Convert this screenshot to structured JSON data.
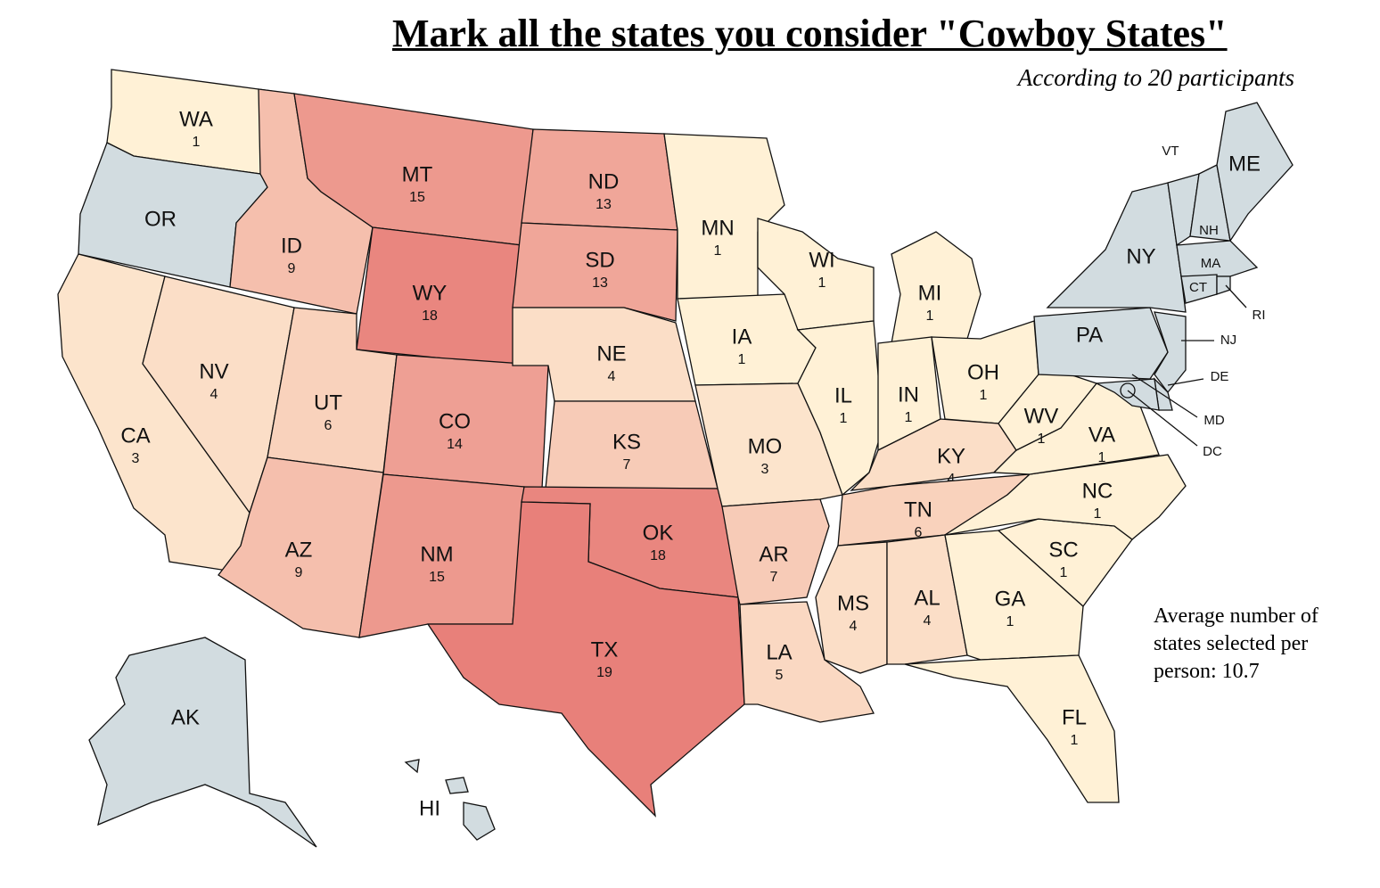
{
  "title": "Mark all the states you consider \"Cowboy States\"",
  "subtitle": "According to 20 participants",
  "note": "Average number of states selected per person: 10.7",
  "states": [
    {
      "label": "WA",
      "count": 1
    },
    {
      "label": "OR"
    },
    {
      "label": "CA",
      "count": 3
    },
    {
      "label": "NV",
      "count": 4
    },
    {
      "label": "ID",
      "count": 9
    },
    {
      "label": "MT",
      "count": 15
    },
    {
      "label": "WY",
      "count": 18
    },
    {
      "label": "UT",
      "count": 6
    },
    {
      "label": "AZ",
      "count": 9
    },
    {
      "label": "CO",
      "count": 14
    },
    {
      "label": "NM",
      "count": 15
    },
    {
      "label": "ND",
      "count": 13
    },
    {
      "label": "SD",
      "count": 13
    },
    {
      "label": "NE",
      "count": 4
    },
    {
      "label": "KS",
      "count": 7
    },
    {
      "label": "OK",
      "count": 18
    },
    {
      "label": "TX",
      "count": 19
    },
    {
      "label": "MN",
      "count": 1
    },
    {
      "label": "IA",
      "count": 1
    },
    {
      "label": "MO",
      "count": 3
    },
    {
      "label": "AR",
      "count": 7
    },
    {
      "label": "LA",
      "count": 5
    },
    {
      "label": "WI",
      "count": 1
    },
    {
      "label": "IL",
      "count": 1
    },
    {
      "label": "MI",
      "count": 1
    },
    {
      "label": "IN",
      "count": 1
    },
    {
      "label": "OH",
      "count": 1
    },
    {
      "label": "KY",
      "count": 4
    },
    {
      "label": "TN",
      "count": 6
    },
    {
      "label": "MS",
      "count": 4
    },
    {
      "label": "AL",
      "count": 4
    },
    {
      "label": "GA",
      "count": 1
    },
    {
      "label": "FL",
      "count": 1
    },
    {
      "label": "SC",
      "count": 1
    },
    {
      "label": "NC",
      "count": 1
    },
    {
      "label": "VA",
      "count": 1
    },
    {
      "label": "WV",
      "count": 1
    },
    {
      "label": "PA"
    },
    {
      "label": "NY"
    },
    {
      "label": "VT"
    },
    {
      "label": "NH"
    },
    {
      "label": "ME"
    },
    {
      "label": "MA"
    },
    {
      "label": "CT"
    },
    {
      "label": "RI"
    },
    {
      "label": "NJ"
    },
    {
      "label": "DE"
    },
    {
      "label": "MD"
    },
    {
      "label": "DC"
    },
    {
      "label": "AK"
    },
    {
      "label": "HI"
    }
  ]
}
